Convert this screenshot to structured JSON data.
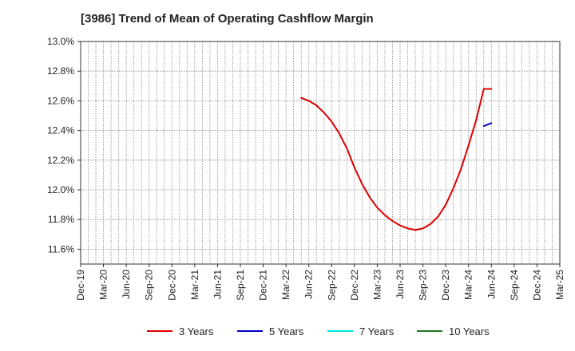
{
  "title": "[3986]  Trend of Mean of Operating Cashflow Margin",
  "chart_data": {
    "type": "line",
    "title": "[3986]  Trend of Mean of Operating Cashflow Margin",
    "xlabel": "",
    "ylabel": "",
    "x_ticks": [
      "Dec-19",
      "Mar-20",
      "Jun-20",
      "Sep-20",
      "Dec-20",
      "Mar-21",
      "Jun-21",
      "Sep-21",
      "Dec-21",
      "Mar-22",
      "Jun-22",
      "Sep-22",
      "Dec-22",
      "Mar-23",
      "Jun-23",
      "Sep-23",
      "Dec-23",
      "Mar-24",
      "Jun-24",
      "Sep-24",
      "Dec-24",
      "Mar-25"
    ],
    "y_ticks": [
      "11.6%",
      "11.8%",
      "12.0%",
      "12.2%",
      "12.4%",
      "12.6%",
      "12.8%",
      "13.0%"
    ],
    "ylim": [
      11.5,
      13.0
    ],
    "y_unit": "%",
    "grid": true,
    "legend_position": "bottom",
    "series": [
      {
        "name": "3 Years",
        "color": "#dd0000",
        "x": [
          "2022-05",
          "2022-06",
          "2022-07",
          "2022-08",
          "2022-09",
          "2022-10",
          "2022-11",
          "2022-12",
          "2023-01",
          "2023-02",
          "2023-03",
          "2023-04",
          "2023-05",
          "2023-06",
          "2023-07",
          "2023-08",
          "2023-09",
          "2023-10",
          "2023-11",
          "2023-12",
          "2024-01",
          "2024-02",
          "2024-03",
          "2024-04",
          "2024-05",
          "2024-06"
        ],
        "values": [
          12.62,
          12.6,
          12.57,
          12.52,
          12.46,
          12.38,
          12.28,
          12.15,
          12.04,
          11.95,
          11.88,
          11.83,
          11.79,
          11.76,
          11.74,
          11.73,
          11.74,
          11.77,
          11.82,
          11.9,
          12.01,
          12.14,
          12.3,
          12.47,
          12.68,
          12.68
        ]
      },
      {
        "name": "5 Years",
        "color": "#0000cc",
        "x": [
          "2024-05",
          "2024-06"
        ],
        "values": [
          12.43,
          12.45
        ]
      },
      {
        "name": "7 Years",
        "color": "#00e5e5",
        "x": [],
        "values": []
      },
      {
        "name": "10 Years",
        "color": "#1a7a1a",
        "x": [],
        "values": []
      }
    ]
  }
}
